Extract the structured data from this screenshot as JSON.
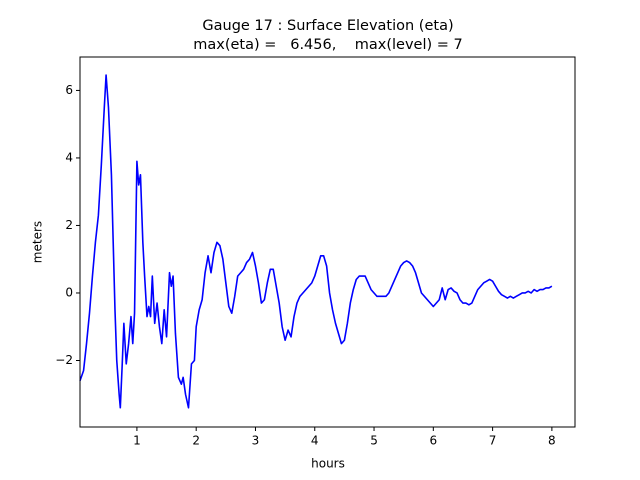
{
  "chart_data": {
    "type": "line",
    "title": "Gauge 17 : Surface Elevation (eta)",
    "subtitle": "max(eta) =   6.456,    max(level) = 7",
    "x_label": "hours",
    "y_label": "meters",
    "color": "#0000ff",
    "x": [
      0.04,
      0.1,
      0.15,
      0.2,
      0.25,
      0.3,
      0.35,
      0.4,
      0.45,
      0.48,
      0.52,
      0.57,
      0.6,
      0.63,
      0.66,
      0.7,
      0.72,
      0.75,
      0.78,
      0.82,
      0.86,
      0.9,
      0.93,
      0.96,
      1.0,
      1.03,
      1.06,
      1.08,
      1.1,
      1.13,
      1.17,
      1.2,
      1.23,
      1.26,
      1.3,
      1.34,
      1.38,
      1.42,
      1.46,
      1.5,
      1.55,
      1.58,
      1.61,
      1.65,
      1.7,
      1.75,
      1.78,
      1.82,
      1.87,
      1.92,
      1.97,
      2.0,
      2.05,
      2.1,
      2.15,
      2.2,
      2.25,
      2.3,
      2.35,
      2.4,
      2.45,
      2.5,
      2.55,
      2.6,
      2.65,
      2.7,
      2.75,
      2.8,
      2.85,
      2.9,
      2.95,
      3.0,
      3.05,
      3.1,
      3.15,
      3.2,
      3.25,
      3.3,
      3.35,
      3.4,
      3.45,
      3.5,
      3.55,
      3.6,
      3.65,
      3.7,
      3.75,
      3.8,
      3.85,
      3.9,
      3.95,
      4.0,
      4.05,
      4.1,
      4.15,
      4.2,
      4.25,
      4.3,
      4.35,
      4.4,
      4.45,
      4.5,
      4.55,
      4.6,
      4.65,
      4.7,
      4.75,
      4.8,
      4.85,
      4.9,
      4.95,
      5.0,
      5.05,
      5.1,
      5.15,
      5.2,
      5.25,
      5.3,
      5.35,
      5.4,
      5.45,
      5.5,
      5.55,
      5.6,
      5.65,
      5.7,
      5.75,
      5.8,
      5.85,
      5.9,
      5.95,
      6.0,
      6.05,
      6.1,
      6.15,
      6.2,
      6.25,
      6.3,
      6.35,
      6.4,
      6.45,
      6.5,
      6.55,
      6.6,
      6.65,
      6.7,
      6.75,
      6.8,
      6.85,
      6.9,
      6.95,
      7.0,
      7.05,
      7.1,
      7.15,
      7.2,
      7.25,
      7.3,
      7.35,
      7.4,
      7.45,
      7.5,
      7.55,
      7.6,
      7.65,
      7.7,
      7.75,
      7.8,
      7.85,
      7.9,
      7.95,
      8.0
    ],
    "values": [
      -2.6,
      -2.3,
      -1.5,
      -0.6,
      0.5,
      1.5,
      2.3,
      3.8,
      5.5,
      6.456,
      5.5,
      3.5,
      1.5,
      -0.5,
      -2.0,
      -3.0,
      -3.4,
      -2.2,
      -0.9,
      -2.1,
      -1.5,
      -0.7,
      -1.5,
      -0.6,
      3.9,
      3.2,
      3.5,
      2.5,
      1.5,
      0.5,
      -0.7,
      -0.4,
      -0.7,
      0.5,
      -0.9,
      -0.3,
      -1.0,
      -1.5,
      -0.5,
      -1.3,
      0.6,
      0.2,
      0.5,
      -1.2,
      -2.5,
      -2.7,
      -2.5,
      -3.0,
      -3.4,
      -2.1,
      -2.0,
      -1.0,
      -0.5,
      -0.2,
      0.6,
      1.1,
      0.6,
      1.2,
      1.5,
      1.4,
      1.0,
      0.3,
      -0.4,
      -0.6,
      -0.1,
      0.5,
      0.6,
      0.7,
      0.9,
      1.0,
      1.2,
      0.8,
      0.3,
      -0.3,
      -0.2,
      0.3,
      0.7,
      0.7,
      0.2,
      -0.3,
      -1.0,
      -1.4,
      -1.1,
      -1.3,
      -0.7,
      -0.3,
      -0.1,
      0.0,
      0.1,
      0.2,
      0.3,
      0.5,
      0.8,
      1.1,
      1.1,
      0.8,
      0.0,
      -0.5,
      -0.9,
      -1.2,
      -1.5,
      -1.4,
      -0.9,
      -0.3,
      0.1,
      0.4,
      0.5,
      0.5,
      0.5,
      0.3,
      0.1,
      0.0,
      -0.1,
      -0.1,
      -0.1,
      -0.1,
      0.0,
      0.2,
      0.4,
      0.6,
      0.8,
      0.9,
      0.95,
      0.9,
      0.8,
      0.6,
      0.3,
      0.0,
      -0.1,
      -0.2,
      -0.3,
      -0.4,
      -0.3,
      -0.2,
      0.15,
      -0.2,
      0.1,
      0.15,
      0.05,
      0.0,
      -0.2,
      -0.3,
      -0.3,
      -0.35,
      -0.3,
      -0.1,
      0.1,
      0.2,
      0.3,
      0.35,
      0.4,
      0.35,
      0.2,
      0.05,
      -0.05,
      -0.1,
      -0.15,
      -0.1,
      -0.15,
      -0.1,
      -0.05,
      0.0,
      0.0,
      0.05,
      0.0,
      0.1,
      0.05,
      0.1,
      0.1,
      0.15,
      0.15,
      0.2
    ],
    "xlim": [
      0.04,
      8.39
    ],
    "ylim": [
      -3.97,
      6.99
    ],
    "xticks": [
      1,
      2,
      3,
      4,
      5,
      6,
      7,
      8
    ],
    "yticks": [
      {
        "value": -2,
        "label": "−2"
      },
      0,
      2,
      4,
      6
    ]
  }
}
